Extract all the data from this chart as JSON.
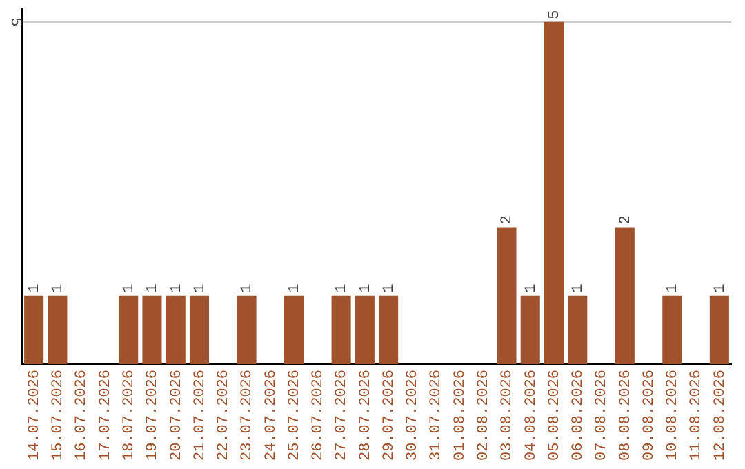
{
  "chart_data": {
    "type": "bar",
    "categories": [
      "14.07.2026",
      "15.07.2026",
      "16.07.2026",
      "17.07.2026",
      "18.07.2026",
      "19.07.2026",
      "20.07.2026",
      "21.07.2026",
      "22.07.2026",
      "23.07.2026",
      "24.07.2026",
      "25.07.2026",
      "26.07.2026",
      "27.07.2026",
      "28.07.2026",
      "29.07.2026",
      "30.07.2026",
      "31.07.2026",
      "01.08.2026",
      "02.08.2026",
      "03.08.2026",
      "04.08.2026",
      "05.08.2026",
      "06.08.2026",
      "07.08.2026",
      "08.08.2026",
      "09.08.2026",
      "10.08.2026",
      "11.08.2026",
      "12.08.2026"
    ],
    "values": [
      1,
      1,
      null,
      null,
      1,
      1,
      1,
      1,
      null,
      1,
      null,
      1,
      null,
      1,
      1,
      1,
      null,
      null,
      null,
      null,
      2,
      1,
      5,
      1,
      null,
      2,
      null,
      1,
      null,
      1
    ],
    "color": "#a0522d",
    "ylim": [
      0,
      5.2
    ],
    "yticks": [
      5
    ],
    "grid": "y",
    "data_labels": true,
    "legend": false
  }
}
